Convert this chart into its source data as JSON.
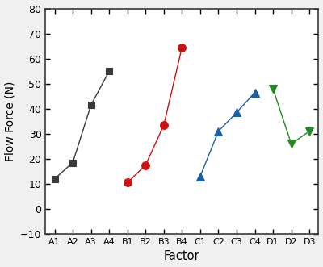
{
  "groups": [
    {
      "labels": [
        "A1",
        "A2",
        "A3",
        "A4"
      ],
      "values": [
        12,
        18.5,
        41.5,
        55
      ],
      "color": "#3a3a3a",
      "marker": "s",
      "markersize": 6
    },
    {
      "labels": [
        "B1",
        "B2",
        "B3",
        "B4"
      ],
      "values": [
        10.5,
        17.5,
        33.5,
        64.5
      ],
      "color": "#cc1111",
      "marker": "o",
      "markersize": 7
    },
    {
      "labels": [
        "C1",
        "C2",
        "C3",
        "C4"
      ],
      "values": [
        13,
        31,
        38.5,
        46.5
      ],
      "color": "#1a5fa8",
      "marker": "^",
      "markersize": 7
    },
    {
      "labels": [
        "D1",
        "D2",
        "D3"
      ],
      "values": [
        48,
        26,
        31
      ],
      "color": "#228b22",
      "marker": "v",
      "markersize": 7
    }
  ],
  "all_labels": [
    "A1",
    "A2",
    "A3",
    "A4",
    "B1",
    "B2",
    "B3",
    "B4",
    "C1",
    "C2",
    "C3",
    "C4",
    "D1",
    "D2",
    "D3"
  ],
  "ylabel": "Flow Force (N)",
  "xlabel": "Factor",
  "ylim": [
    -10,
    80
  ],
  "yticks": [
    -10,
    0,
    10,
    20,
    30,
    40,
    50,
    60,
    70,
    80
  ],
  "background_color": "#ffffff",
  "fig_background": "#f0f0f0",
  "linewidth": 1.0,
  "spine_color": "#3a3a3a",
  "spine_linewidth": 1.2
}
